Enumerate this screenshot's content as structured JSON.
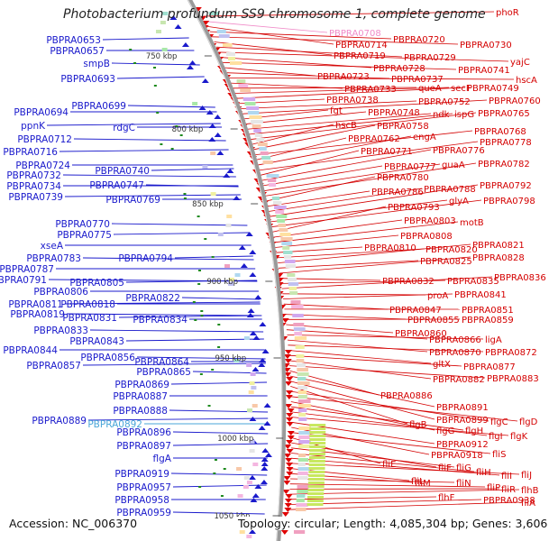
{
  "title": "Photobacterium profundum SS9 chromosome 1, complete genome",
  "accession": "Accession: NC_006370",
  "topology": "Topology: circular; Length: 4,085,304 bp; Genes: 3,606",
  "colors": {
    "left_labels": "#1a1acc",
    "right_labels": "#d40000",
    "highlight_left": "#4aa6d8",
    "highlight_right": "#f08ac8",
    "backbone": "#9a9a9a",
    "tick": "#1e8a1e"
  },
  "scale_ticks": [
    "750 kbp",
    "800 kbp",
    "850 kbp",
    "900 kbp",
    "950 kbp",
    "1000 kbp",
    "1050 kbp"
  ],
  "left_labels": [
    "PBPRA0653",
    "PBPRA0657",
    "smpB",
    "PBPRA0693",
    "PBPRA0694",
    "PBPRA0699",
    "ppnK",
    "rdgC",
    "PBPRA0712",
    "PBPRA0716",
    "PBPRA0724",
    "PBPRA0732",
    "PBPRA0740",
    "PBPRA0734",
    "PBPRA0747",
    "PBPRA0739",
    "PBPRA0769",
    "PBPRA0770",
    "PBPRA0775",
    "xseA",
    "PBPRA0783",
    "PBPRA0794",
    "PBPRA0787",
    "PBPRA0791",
    "PBPRA0805",
    "PBPRA0806",
    "PBPRA0822",
    "PBPRA0811",
    "PBPRA0818",
    "PBPRA0819",
    "PBPRA0831",
    "PBPRA0834",
    "PBPRA0833",
    "PBPRA0843",
    "PBPRA0844",
    "PBPRA0856",
    "PBPRA0857",
    "PBPRA0864",
    "PBPRA0865",
    "PBPRA0869",
    "PBPRA0887",
    "PBPRA0888",
    "PBPRA0889",
    "PBPRA0892",
    "PBPRA0896",
    "PBPRA0897",
    "flgA",
    "PBPRA0919",
    "PBPRA0957",
    "PBPRA0958",
    "PBPRA0959"
  ],
  "right_labels": [
    "phoR",
    "PBPRA0708",
    "PBPRA0714",
    "PBPRA0720",
    "PBPRA0730",
    "PBPRA0719",
    "PBPRA0729",
    "yajC",
    "PBPRA0728",
    "PBPRA0741",
    "PBPRA0723",
    "PBPRA0737",
    "hscA",
    "PBPRA0733",
    "queA",
    "secF",
    "PBPRA0749",
    "PBPRA0738",
    "PBPRA0752",
    "PBPRA0760",
    "fgt",
    "PBPRA0748",
    "ndk",
    "ispG",
    "PBPRA0765",
    "hscB",
    "PBPRA0758",
    "PBPRA0768",
    "PBPRA0762",
    "engA",
    "PBPRA0778",
    "PBPRA0771",
    "PBPRA0776",
    "PBPRA0777",
    "guaA",
    "PBPRA0782",
    "PBPRA0780",
    "PBPRA0786",
    "PBPRA0788",
    "PBPRA0792",
    "glyA",
    "PBPRA0798",
    "PBPRA0793",
    "PBPRA0803",
    "motB",
    "PBPRA0808",
    "PBPRA0810",
    "PBPRA0820",
    "PBPRA0821",
    "PBPRA0825",
    "PBPRA0828",
    "PBPRA0832",
    "PBPRA0835",
    "PBPRA0836",
    "proA",
    "PBPRA0841",
    "PBPRA0847",
    "PBPRA0851",
    "PBPRA0855",
    "PBPRA0859",
    "PBPRA0860",
    "PBPRA0866",
    "ligA",
    "PBPRA0870",
    "PBPRA0872",
    "gltX",
    "PBPRA0877",
    "PBPRA0882",
    "PBPRA0883",
    "PBPRA0886",
    "PBPRA0891",
    "PBPRA0899",
    "flgB",
    "flgC",
    "flgD",
    "flgG",
    "flgH",
    "flgI",
    "flgK",
    "PBPRA0912",
    "PBPRA0918",
    "fliS",
    "fliE",
    "fliF",
    "fliG",
    "fliH",
    "fliI",
    "fliJ",
    "fliL",
    "fliM",
    "fliN",
    "fliP",
    "fliR",
    "flhB",
    "flhF",
    "PBPRA0938",
    "fliA"
  ]
}
